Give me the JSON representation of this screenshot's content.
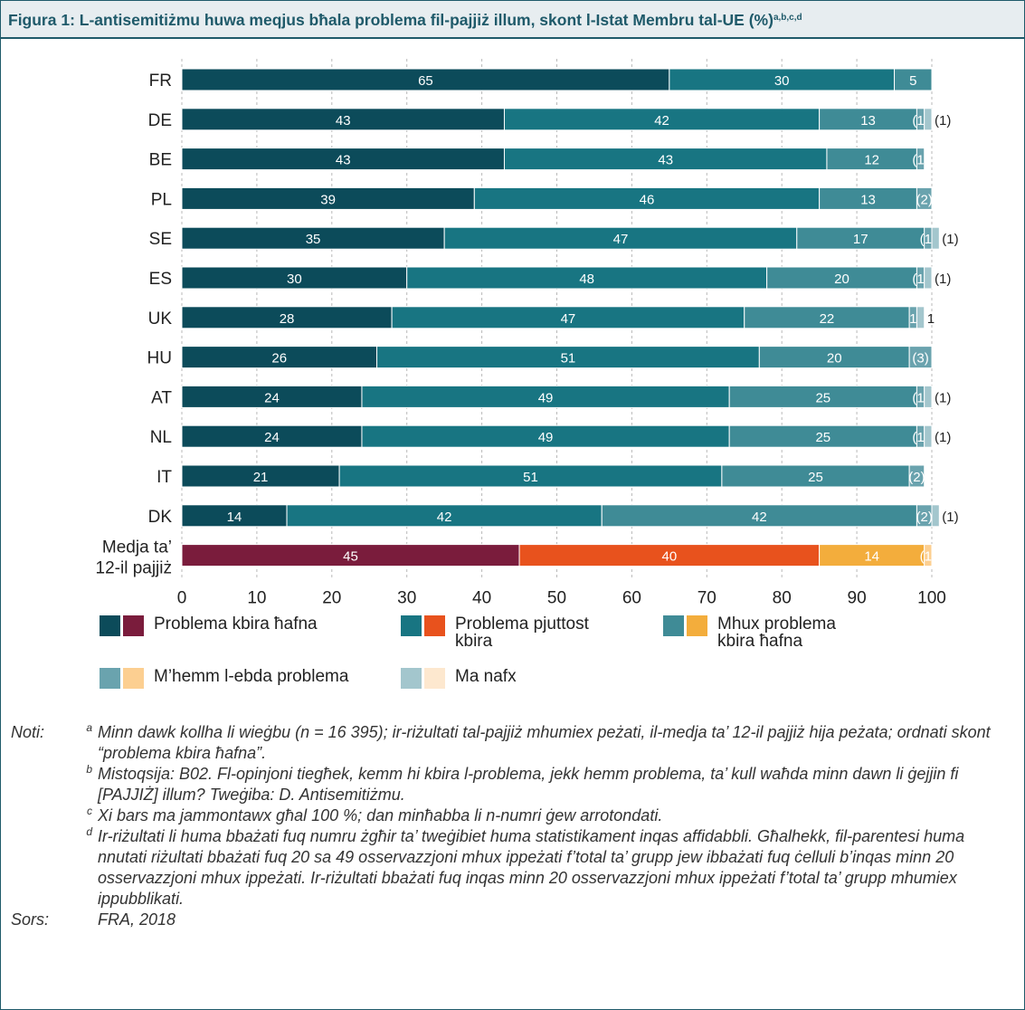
{
  "figure": {
    "title": "Figura 1: L-antisemitiżmu huwa meqjus bħala problema fil-pajjiż illum, skont l-Istat Membru tal-UE (%)",
    "title_sup": "a,b,c,d"
  },
  "chart_data": {
    "type": "bar",
    "orientation": "horizontal",
    "stacked": true,
    "title": "Figura 1: L-antisemitiżmu huwa meqjus bħala problema fil-pajjiż illum, skont l-Istat Membru tal-UE (%)",
    "xlabel": "",
    "ylabel": "",
    "xlim": [
      0,
      100
    ],
    "xticks": [
      "0",
      "10",
      "20",
      "30",
      "40",
      "50",
      "60",
      "70",
      "80",
      "90",
      "100"
    ],
    "grid": "vertical dashed",
    "legend_position": "bottom",
    "categories": [
      "FR",
      "DE",
      "BE",
      "PL",
      "SE",
      "ES",
      "UK",
      "HU",
      "AT",
      "NL",
      "IT",
      "DK",
      "Medja ta’ 12-il pajjiż"
    ],
    "series": [
      {
        "name": "Problema kbira ħafna",
        "values": [
          65,
          43,
          43,
          39,
          35,
          30,
          28,
          26,
          24,
          24,
          21,
          14,
          45
        ],
        "labels": [
          "65",
          "43",
          "43",
          "39",
          "35",
          "30",
          "28",
          "26",
          "24",
          "24",
          "21",
          "14",
          "45"
        ]
      },
      {
        "name": "Problema pjuttost kbira",
        "values": [
          30,
          42,
          43,
          46,
          47,
          48,
          47,
          51,
          49,
          49,
          51,
          42,
          40
        ],
        "labels": [
          "30",
          "42",
          "43",
          "46",
          "47",
          "48",
          "47",
          "51",
          "49",
          "49",
          "51",
          "42",
          "40"
        ]
      },
      {
        "name": "Mhux problema kbira ħafna",
        "values": [
          5,
          13,
          12,
          13,
          17,
          20,
          22,
          20,
          25,
          25,
          25,
          42,
          14
        ],
        "labels": [
          "5",
          "13",
          "12",
          "13",
          "17",
          "20",
          "22",
          "20",
          "25",
          "25",
          "25",
          "42",
          "14"
        ]
      },
      {
        "name": "M’hemm l-ebda problema",
        "values": [
          0,
          1,
          1,
          2,
          1,
          1,
          1,
          3,
          1,
          1,
          2,
          2,
          1
        ],
        "labels": [
          "",
          "(1)",
          "(1)",
          "(2)",
          "(1)",
          "(1)",
          "1",
          "(3)",
          "(1)",
          "(1)",
          "(2)",
          "(2)",
          "(1)"
        ]
      },
      {
        "name": "Ma nafx",
        "values": [
          0,
          1,
          0,
          0,
          1,
          1,
          1,
          0,
          1,
          1,
          0,
          1,
          0
        ],
        "labels": [
          "",
          "(1)",
          "",
          "",
          "(1)",
          "(1)",
          "1",
          "",
          "(1)",
          "(1)",
          "",
          "(1)",
          ""
        ]
      }
    ],
    "colors": {
      "countries": [
        "#0c4b5a",
        "#187582",
        "#3f8b96",
        "#6aa3ae",
        "#a3c6cd"
      ],
      "average": [
        "#7a1c3c",
        "#e8521d",
        "#f3ad3c",
        "#fccf91",
        "#fde8cf"
      ]
    }
  },
  "legend": [
    {
      "label": "Problema kbira ħafna",
      "c1": "#0c4b5a",
      "c2": "#7a1c3c"
    },
    {
      "label": "Problema pjuttost\nkbira",
      "c1": "#187582",
      "c2": "#e8521d"
    },
    {
      "label": "Mhux problema\nkbira ħafna",
      "c1": "#3f8b96",
      "c2": "#f3ad3c"
    },
    {
      "label": "M’hemm l-ebda problema",
      "c1": "#6aa3ae",
      "c2": "#fccf91"
    },
    {
      "label": "Ma nafx",
      "c1": "#a3c6cd",
      "c2": "#fde8cf"
    }
  ],
  "notes": {
    "label": "Noti:",
    "items": [
      {
        "mark": "a",
        "text": "Minn dawk kollha li wieġbu (n = 16 395); ir-riżultati tal-pajjiż mhumiex peżati, il-medja ta’ 12-il pajjiż hija peżata; ordnati skont “problema kbira ħafna”."
      },
      {
        "mark": "b",
        "text": "Mistoqsija: B02. Fl-opinjoni tiegħek, kemm hi kbira l-problema, jekk hemm problema, ta’ kull waħda minn dawn li ġejjin fi [PAJJIŻ] illum? Tweġiba: D. Antisemitiżmu."
      },
      {
        "mark": "c",
        "text": "Xi bars ma jammontawx għal 100 %; dan minħabba li n-numri ġew arrotondati."
      },
      {
        "mark": "d",
        "text": "Ir-riżultati li huma bbażati fuq numru żgħir ta’ tweġibiet huma statistikament inqas affidabbli. Għalhekk, fil-parentesi huma nnutati riżultati bbażati fuq 20 sa 49 osservazzjoni mhux ippeżati f’total ta’ grupp jew ibbażati fuq ċelluli b’inqas minn 20 osservazzjoni mhux ippeżati. Ir-riżultati bbażati fuq inqas minn 20 osservazzjoni mhux ippeżati f’total ta’ grupp mhumiex ippubblikati."
      }
    ],
    "source_label": "Sors:",
    "source": "FRA, 2018"
  }
}
